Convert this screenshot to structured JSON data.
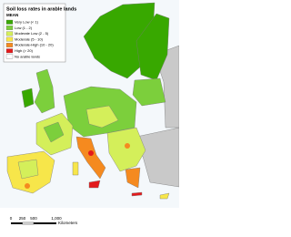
{
  "title": "Soil loss rates in arable lands",
  "subtitle": "MEAN",
  "legend": [
    {
      "label": "Very Low (< 1)",
      "color": "#38a800"
    },
    {
      "label": "Low (1 - 2)",
      "color": "#7ccf3c"
    },
    {
      "label": "Moderate Low (2 - 5)",
      "color": "#d4ef5a"
    },
    {
      "label": "Moderate (5 - 10)",
      "color": "#f7e64a"
    },
    {
      "label": "Moderate-High (10 - 20)",
      "color": "#f58a1f"
    },
    {
      "label": "High (> 20)",
      "color": "#e31a1c"
    },
    {
      "label": "No arable lands",
      "color": "#ffffff"
    }
  ],
  "scale_bar": {
    "ticks": [
      "0",
      "250",
      "500",
      "1,000"
    ],
    "unit": "Kilometers"
  }
}
